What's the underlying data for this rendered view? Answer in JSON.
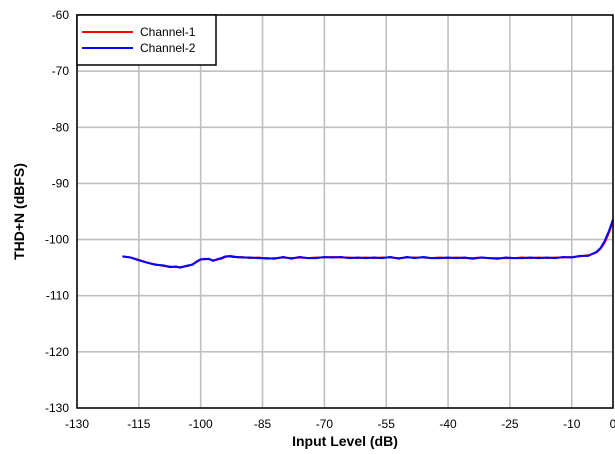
{
  "chart_data": {
    "type": "line",
    "title": "",
    "xlabel": "Input Level (dB)",
    "ylabel": "THD+N (dBFS)",
    "xlim": [
      -130,
      0
    ],
    "ylim": [
      -130,
      -60
    ],
    "x_ticks": [
      -130,
      -115,
      -100,
      -85,
      -70,
      -55,
      -40,
      -25,
      -10,
      0
    ],
    "y_ticks": [
      -130,
      -120,
      -110,
      -100,
      -90,
      -80,
      -70,
      -60
    ],
    "x_tick_labels": [
      "-130",
      "-115",
      "-100",
      "-85",
      "-70",
      "-55",
      "-40",
      "-25",
      "-10",
      "0"
    ],
    "y_tick_labels": [
      "-130",
      "-120",
      "-110",
      "-100",
      "-90",
      "-80",
      "-70",
      "-60"
    ],
    "grid": true,
    "legend_position": "top-left",
    "series": [
      {
        "name": "Channel-1",
        "color": "#ff0000",
        "x": [
          -119,
          -117,
          -115,
          -113,
          -111,
          -109,
          -107.5,
          -106,
          -105,
          -104,
          -103,
          -102,
          -101,
          -100,
          -99,
          -98,
          -97,
          -96,
          -95,
          -94,
          -93,
          -92,
          -91,
          -90,
          -88,
          -86,
          -84,
          -82,
          -80,
          -78,
          -76,
          -74,
          -72,
          -70,
          -68,
          -66,
          -64,
          -62,
          -60,
          -58,
          -56,
          -54,
          -52,
          -50,
          -48,
          -46,
          -44,
          -42,
          -40,
          -38,
          -36,
          -34,
          -32,
          -30,
          -28,
          -26,
          -24,
          -22,
          -20,
          -18,
          -16,
          -14,
          -12,
          -10,
          -8,
          -6,
          -4,
          -3,
          -2,
          -1,
          0
        ],
        "values": [
          -103.0,
          -103.2,
          -103.6,
          -104.1,
          -104.4,
          -104.7,
          -104.8,
          -104.9,
          -104.9,
          -104.8,
          -104.7,
          -104.4,
          -104.0,
          -103.6,
          -103.4,
          -103.5,
          -103.7,
          -103.6,
          -103.4,
          -103.1,
          -102.9,
          -103.0,
          -103.2,
          -103.1,
          -103.3,
          -103.2,
          -103.4,
          -103.3,
          -103.2,
          -103.3,
          -103.2,
          -103.3,
          -103.2,
          -103.2,
          -103.1,
          -103.2,
          -103.2,
          -103.3,
          -103.2,
          -103.3,
          -103.2,
          -103.2,
          -103.3,
          -103.2,
          -103.2,
          -103.2,
          -103.3,
          -103.2,
          -103.3,
          -103.2,
          -103.3,
          -103.3,
          -103.2,
          -103.3,
          -103.3,
          -103.3,
          -103.3,
          -103.2,
          -103.3,
          -103.2,
          -103.3,
          -103.2,
          -103.2,
          -103.1,
          -103.0,
          -102.8,
          -102.3,
          -101.6,
          -100.5,
          -98.8,
          -96.8
        ]
      },
      {
        "name": "Channel-2",
        "color": "#0000ff",
        "x": [
          -119,
          -117,
          -115,
          -113,
          -111,
          -109,
          -107.5,
          -106,
          -105,
          -104,
          -103,
          -102,
          -101,
          -100,
          -99,
          -98,
          -97,
          -96,
          -95,
          -94,
          -93,
          -92,
          -91,
          -90,
          -88,
          -86,
          -84,
          -82,
          -80,
          -78,
          -76,
          -74,
          -72,
          -70,
          -68,
          -66,
          -64,
          -62,
          -60,
          -58,
          -56,
          -54,
          -52,
          -50,
          -48,
          -46,
          -44,
          -42,
          -40,
          -38,
          -36,
          -34,
          -32,
          -30,
          -28,
          -26,
          -24,
          -22,
          -20,
          -18,
          -16,
          -14,
          -12,
          -10,
          -8,
          -6,
          -4,
          -3,
          -2,
          -1,
          0
        ],
        "values": [
          -103.0,
          -103.2,
          -103.7,
          -104.1,
          -104.5,
          -104.6,
          -104.9,
          -104.8,
          -105.0,
          -104.8,
          -104.6,
          -104.5,
          -103.9,
          -103.5,
          -103.5,
          -103.4,
          -103.8,
          -103.5,
          -103.3,
          -103.0,
          -103.0,
          -103.1,
          -103.1,
          -103.2,
          -103.2,
          -103.3,
          -103.3,
          -103.4,
          -103.1,
          -103.4,
          -103.1,
          -103.3,
          -103.3,
          -103.1,
          -103.2,
          -103.1,
          -103.3,
          -103.2,
          -103.3,
          -103.2,
          -103.3,
          -103.1,
          -103.4,
          -103.1,
          -103.3,
          -103.1,
          -103.3,
          -103.3,
          -103.2,
          -103.3,
          -103.2,
          -103.4,
          -103.2,
          -103.3,
          -103.4,
          -103.2,
          -103.3,
          -103.3,
          -103.2,
          -103.3,
          -103.2,
          -103.3,
          -103.1,
          -103.2,
          -102.9,
          -102.9,
          -102.2,
          -101.5,
          -100.2,
          -98.5,
          -96.4
        ]
      }
    ]
  }
}
